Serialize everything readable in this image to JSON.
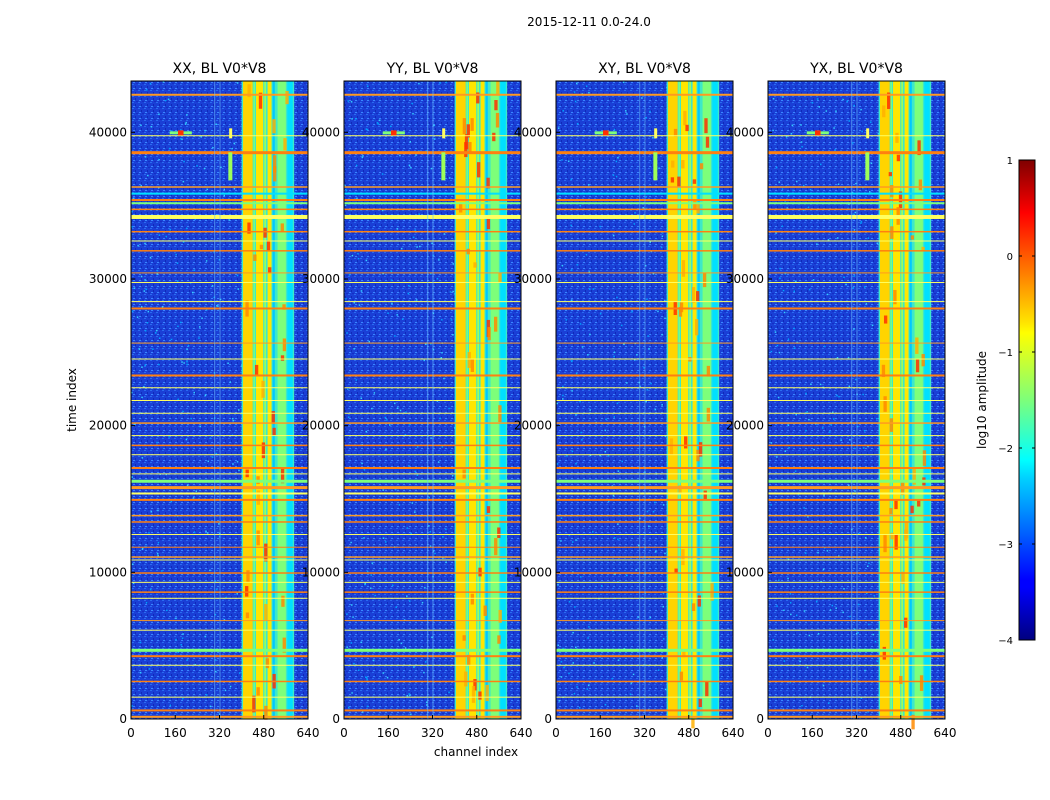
{
  "figure": {
    "suptitle": "2015-12-11 0.0-24.0",
    "ylabel": "time index",
    "xlabel": "channel index"
  },
  "chart_data": [
    {
      "type": "heatmap",
      "title": "XX, BL V0*V8",
      "xlim": [
        0,
        640
      ],
      "ylim": [
        0,
        43500
      ],
      "xticks": [
        "0",
        "160",
        "320",
        "480",
        "640"
      ],
      "yticks": [
        "0",
        "10000",
        "20000",
        "30000",
        "40000"
      ]
    },
    {
      "type": "heatmap",
      "title": "YY, BL V0*V8",
      "xlim": [
        0,
        640
      ],
      "ylim": [
        0,
        43500
      ],
      "xticks": [
        "0",
        "160",
        "320",
        "480",
        "640"
      ],
      "yticks": [
        "0",
        "10000",
        "20000",
        "30000",
        "40000"
      ]
    },
    {
      "type": "heatmap",
      "title": "XY, BL V0*V8",
      "xlim": [
        0,
        640
      ],
      "ylim": [
        0,
        43500
      ],
      "xticks": [
        "0",
        "160",
        "320",
        "480",
        "640"
      ],
      "yticks": [
        "0",
        "10000",
        "20000",
        "30000",
        "40000"
      ]
    },
    {
      "type": "heatmap",
      "title": "YX, BL V0*V8",
      "xlim": [
        0,
        640
      ],
      "ylim": [
        0,
        43500
      ],
      "xticks": [
        "0",
        "160",
        "320",
        "480",
        "640"
      ],
      "yticks": [
        "0",
        "10000",
        "20000",
        "30000",
        "40000"
      ]
    }
  ],
  "colorbar": {
    "label": "log10 amplitude",
    "range": [
      -4,
      1
    ],
    "ticks": [
      "1",
      "0",
      "−1",
      "−2",
      "−3",
      "−4"
    ],
    "colormap": "jet"
  }
}
